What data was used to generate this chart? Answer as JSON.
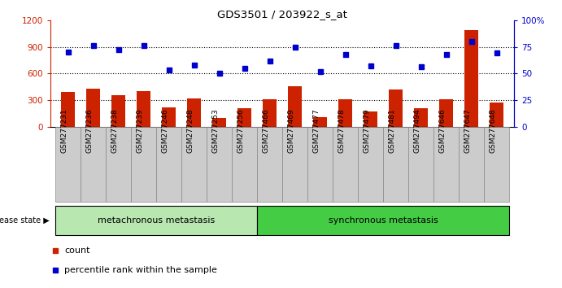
{
  "title": "GDS3501 / 203922_s_at",
  "samples": [
    "GSM277231",
    "GSM277236",
    "GSM277238",
    "GSM277239",
    "GSM277246",
    "GSM277248",
    "GSM277253",
    "GSM277256",
    "GSM277466",
    "GSM277469",
    "GSM277477",
    "GSM277478",
    "GSM277479",
    "GSM277481",
    "GSM277494",
    "GSM277646",
    "GSM277647",
    "GSM277648"
  ],
  "counts": [
    390,
    430,
    355,
    400,
    215,
    315,
    95,
    210,
    310,
    460,
    105,
    305,
    175,
    415,
    205,
    310,
    1090,
    275
  ],
  "percentiles": [
    70,
    76,
    72,
    76,
    53,
    58,
    50,
    55,
    62,
    75,
    52,
    68,
    57,
    76,
    56,
    68,
    80,
    69
  ],
  "groups": [
    "metachronous metastasis",
    "metachronous metastasis",
    "metachronous metastasis",
    "metachronous metastasis",
    "metachronous metastasis",
    "metachronous metastasis",
    "metachronous metastasis",
    "metachronous metastasis",
    "synchronous metastasis",
    "synchronous metastasis",
    "synchronous metastasis",
    "synchronous metastasis",
    "synchronous metastasis",
    "synchronous metastasis",
    "synchronous metastasis",
    "synchronous metastasis",
    "synchronous metastasis",
    "synchronous metastasis"
  ],
  "group_labels": [
    "metachronous metastasis",
    "synchronous metastasis"
  ],
  "group_colors": [
    "#b8e8b0",
    "#44cc44"
  ],
  "bar_color": "#cc2200",
  "dot_color": "#0000cc",
  "left_ylim": [
    0,
    1200
  ],
  "right_ylim": [
    0,
    100
  ],
  "left_yticks": [
    0,
    300,
    600,
    900,
    1200
  ],
  "right_yticks": [
    0,
    25,
    50,
    75,
    100
  ],
  "right_yticklabels": [
    "0",
    "25",
    "50",
    "75",
    "100%"
  ],
  "grid_values": [
    300,
    600,
    900
  ],
  "disease_state_label": "disease state",
  "legend_count_label": "count",
  "legend_percentile_label": "percentile rank within the sample",
  "bg_color": "#ffffff",
  "tick_label_color_left": "#cc2200",
  "tick_label_color_right": "#0000cc",
  "xtick_bg_color": "#cccccc",
  "xtick_border_color": "#888888"
}
